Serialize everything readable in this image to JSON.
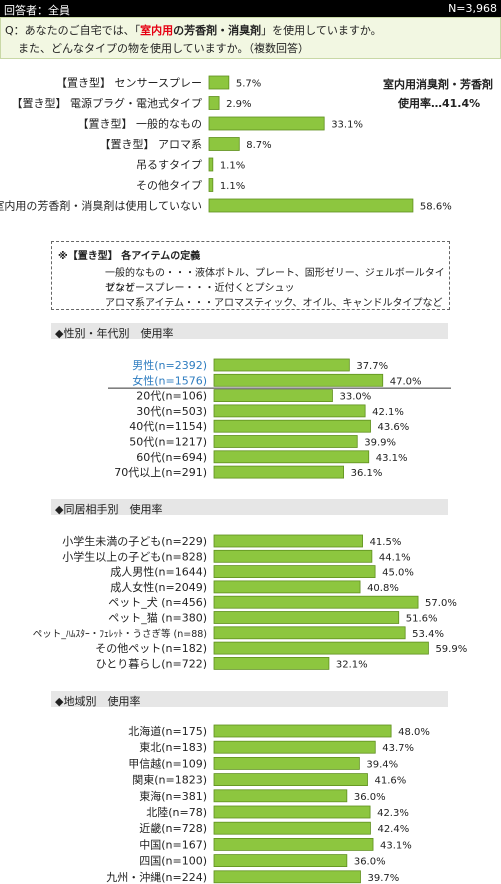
{
  "header": {
    "respondents": "回答者：全員",
    "n": "N=3,968"
  },
  "question": {
    "prefix": "Q：あなたのご自宅では、",
    "quote_open": "「",
    "highlight_red": "室内用",
    "highlight_bold": "の芳香剤・消臭剤",
    "quote_close": "」",
    "suffix": "を使用していますか。",
    "line2": "また、どんなタイプの物を使用していますか。（複数回答）"
  },
  "summary": {
    "line1": "室内用消臭剤・芳香剤",
    "line2": "使用率…41.4%"
  },
  "definition": {
    "title": "※【置き型】 各アイテムの定義",
    "line1": "一般的なもの・・・液体ボトル、プレート、固形ゼリー、ジェルボールタイプなど",
    "line2": "センサースプレー・・・近付くとプシュッ",
    "line3": "アロマ系アイテム・・・アロマスティック、オイル、キャンドルタイプなど"
  },
  "colors": {
    "bar": "#8dc63f",
    "bar_stroke": "#5f8f1e",
    "gender_label": "#2f7dc0",
    "header_bg": "#000000",
    "question_bg": "#f2f7e2"
  },
  "chart_data": [
    {
      "type": "bar",
      "orientation": "horizontal",
      "categories": [
        "【置き型】 センサースプレー",
        "【置き型】 電源プラグ・電池式タイプ",
        "【置き型】 一般的なもの",
        "【置き型】 アロマ系",
        "吊るすタイプ",
        "その他タイプ",
        "室内用の芳香剤・消臭剤は使用していない"
      ],
      "values": [
        5.7,
        2.9,
        33.1,
        8.7,
        1.1,
        1.1,
        58.6
      ],
      "value_labels": [
        "5.7%",
        "2.9%",
        "33.1%",
        "8.7%",
        "1.1%",
        "1.1%",
        "58.6%"
      ]
    },
    {
      "type": "bar",
      "orientation": "horizontal",
      "title": "◆性別・年代別　使用率",
      "categories": [
        "男性(n=2392)",
        "女性(n=1576)",
        "20代(n=106)",
        "30代(n=503)",
        "40代(n=1154)",
        "50代(n=1217)",
        "60代(n=694)",
        "70代以上(n=291)"
      ],
      "values": [
        37.7,
        47.0,
        33.0,
        42.1,
        43.6,
        39.9,
        43.1,
        36.1
      ],
      "value_labels": [
        "37.7%",
        "47.0%",
        "33.0%",
        "42.1%",
        "43.6%",
        "39.9%",
        "43.1%",
        "36.1%"
      ]
    },
    {
      "type": "bar",
      "orientation": "horizontal",
      "title": "◆同居相手別　使用率",
      "categories": [
        "小学生未満の子ども(n=229)",
        "小学生以上の子ども(n=828)",
        "成人男性(n=1644)",
        "成人女性(n=2049)",
        "ペット_犬 (n=456)",
        "ペット_猫 (n=380)",
        "ペット_ﾊﾑｽﾀｰ・ﾌｪﾚｯﾄ・うさぎ等 (n=88)",
        "その他ペット(n=182)",
        "ひとり暮らし(n=722)"
      ],
      "values": [
        41.5,
        44.1,
        45.0,
        40.8,
        57.0,
        51.6,
        53.4,
        59.9,
        32.1
      ],
      "value_labels": [
        "41.5%",
        "44.1%",
        "45.0%",
        "40.8%",
        "57.0%",
        "51.6%",
        "53.4%",
        "59.9%",
        "32.1%"
      ]
    },
    {
      "type": "bar",
      "orientation": "horizontal",
      "title": "◆地域別　使用率",
      "categories": [
        "北海道(n=175)",
        "東北(n=183)",
        "甲信越(n=109)",
        "関東(n=1823)",
        "東海(n=381)",
        "北陸(n=78)",
        "近畿(n=728)",
        "中国(n=167)",
        "四国(n=100)",
        "九州・沖縄(n=224)"
      ],
      "values": [
        48.0,
        43.7,
        39.4,
        41.6,
        36.0,
        42.3,
        42.4,
        43.1,
        36.0,
        39.7
      ],
      "value_labels": [
        "48.0%",
        "43.7%",
        "39.4%",
        "41.6%",
        "36.0%",
        "42.3%",
        "42.4%",
        "43.1%",
        "36.0%",
        "39.7%"
      ]
    }
  ]
}
